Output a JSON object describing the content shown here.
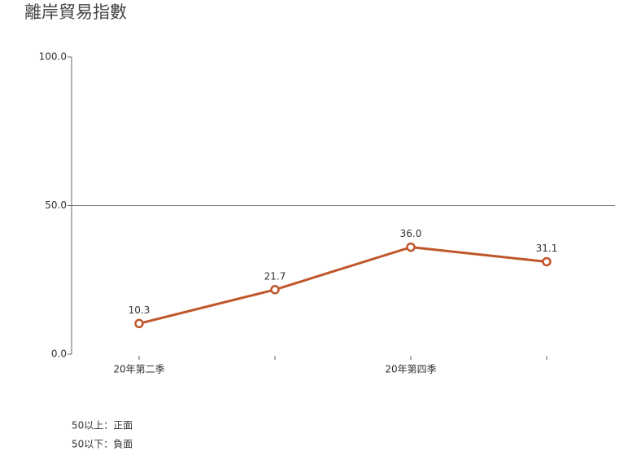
{
  "chart_data": {
    "type": "line",
    "title": "離岸貿易指數",
    "categories": [
      "20年第二季",
      null,
      "20年第四季",
      null
    ],
    "series": [
      {
        "color": "#c0562a",
        "values": [
          10.3,
          21.7,
          36.0,
          31.1
        ],
        "value_labels": [
          "10.3",
          "21.7",
          "36.0",
          "31.1"
        ]
      }
    ],
    "ylim": [
      0,
      100
    ],
    "yticks": [
      {
        "value": 0,
        "label": "0.0"
      },
      {
        "value": 50,
        "label": "50.0"
      },
      {
        "value": 100,
        "label": "100.0"
      }
    ],
    "reference_line": 50,
    "annotations": [
      "50以上：正面",
      "50以下：負面"
    ]
  }
}
